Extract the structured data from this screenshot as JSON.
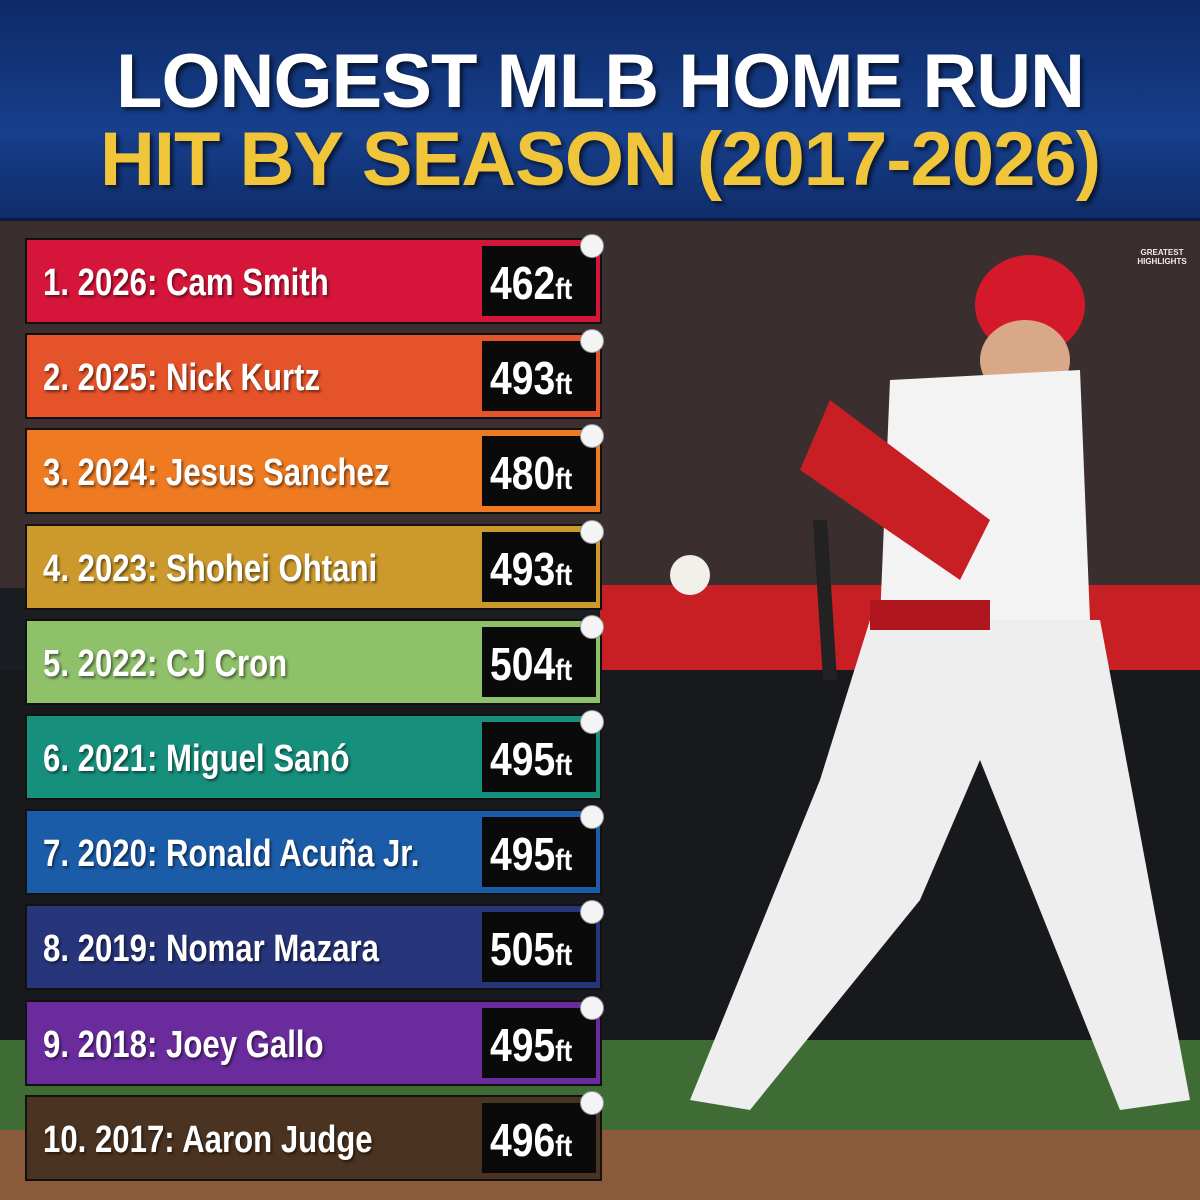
{
  "header": {
    "title_line1": "LONGEST MLB HOME RUN",
    "title_line2": "HIT BY SEASON (2017-2026)"
  },
  "logo": {
    "line1": "GREATEST",
    "line2": "HIGHLIGHTS"
  },
  "rows": [
    {
      "label": "1. 2026: Cam Smith",
      "distance": "462",
      "unit": "ft",
      "color": "#d5163a"
    },
    {
      "label": "2. 2025: Nick Kurtz",
      "distance": "493",
      "unit": "ft",
      "color": "#e5532a"
    },
    {
      "label": "3. 2024: Jesus Sanchez",
      "distance": "480",
      "unit": "ft",
      "color": "#ee7a22"
    },
    {
      "label": "4. 2023: Shohei Ohtani",
      "distance": "493",
      "unit": "ft",
      "color": "#cc9a2c"
    },
    {
      "label": "5. 2022: CJ Cron",
      "distance": "504",
      "unit": "ft",
      "color": "#8fc06a"
    },
    {
      "label": "6. 2021: Miguel Sanó",
      "distance": "495",
      "unit": "ft",
      "color": "#178f7d"
    },
    {
      "label": "7. 2020: Ronald Acuña Jr.",
      "distance": "495",
      "unit": "ft",
      "color": "#1b5ca8"
    },
    {
      "label": "8. 2019: Nomar Mazara",
      "distance": "505",
      "unit": "ft",
      "color": "#27357a"
    },
    {
      "label": "9. 2018: Joey Gallo",
      "distance": "495",
      "unit": "ft",
      "color": "#6a2c9c"
    },
    {
      "label": "10. 2017: Aaron Judge",
      "distance": "496",
      "unit": "ft",
      "color": "#4a3320"
    }
  ]
}
